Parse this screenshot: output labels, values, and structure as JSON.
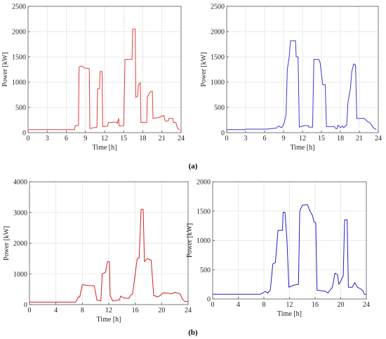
{
  "panel_labels": {
    "a": "(a)",
    "b": "(b)"
  },
  "chart_data": [
    {
      "type": "line",
      "panel": "a-left",
      "xlabel": "Time [h]",
      "ylabel": "Power [kW]",
      "xlim": [
        0,
        24
      ],
      "ylim": [
        0,
        2500
      ],
      "xticks": [
        0,
        3,
        6,
        9,
        12,
        15,
        18,
        21,
        24
      ],
      "yticks": [
        0,
        500,
        1000,
        1500,
        2000,
        2500
      ],
      "grid": true,
      "color": "#e0403a",
      "series": [
        {
          "points": [
            [
              0,
              60
            ],
            [
              7.3,
              60
            ],
            [
              7.4,
              140
            ],
            [
              7.9,
              140
            ],
            [
              8.0,
              1300
            ],
            [
              8.3,
              1320
            ],
            [
              8.6,
              1310
            ],
            [
              8.8,
              1280
            ],
            [
              9.6,
              1270
            ],
            [
              9.7,
              80
            ],
            [
              10.3,
              100
            ],
            [
              10.8,
              100
            ],
            [
              10.9,
              870
            ],
            [
              11.2,
              870
            ],
            [
              11.3,
              1210
            ],
            [
              11.6,
              1210
            ],
            [
              11.7,
              120
            ],
            [
              12.5,
              130
            ],
            [
              12.6,
              200
            ],
            [
              13.9,
              210
            ],
            [
              14.0,
              180
            ],
            [
              14.2,
              280
            ],
            [
              14.3,
              130
            ],
            [
              15.0,
              140
            ],
            [
              15.2,
              1450
            ],
            [
              16.3,
              1450
            ],
            [
              16.4,
              2050
            ],
            [
              16.8,
              2050
            ],
            [
              16.9,
              700
            ],
            [
              17.2,
              720
            ],
            [
              17.3,
              940
            ],
            [
              17.6,
              990
            ],
            [
              17.7,
              200
            ],
            [
              18.6,
              200
            ],
            [
              18.7,
              700
            ],
            [
              19.1,
              800
            ],
            [
              19.5,
              820
            ],
            [
              19.6,
              280
            ],
            [
              20.5,
              300
            ],
            [
              21.3,
              340
            ],
            [
              21.5,
              230
            ],
            [
              22.0,
              230
            ],
            [
              22.1,
              280
            ],
            [
              22.7,
              280
            ],
            [
              22.8,
              200
            ],
            [
              23.2,
              200
            ],
            [
              23.4,
              100
            ],
            [
              23.8,
              50
            ]
          ]
        }
      ]
    },
    {
      "type": "line",
      "panel": "a-right",
      "xlabel": "Time [h]",
      "ylabel": "Power [kW]",
      "xlim": [
        0,
        24
      ],
      "ylim": [
        0,
        2500
      ],
      "xticks": [
        0,
        3,
        6,
        9,
        12,
        15,
        18,
        21,
        24
      ],
      "yticks": [
        0,
        500,
        1000,
        1500,
        2000,
        2500
      ],
      "grid": true,
      "color": "#3a3ad8",
      "series": [
        {
          "points": [
            [
              0,
              60
            ],
            [
              2.9,
              60
            ],
            [
              3.0,
              70
            ],
            [
              6.5,
              70
            ],
            [
              7.0,
              80
            ],
            [
              7.9,
              90
            ],
            [
              8.0,
              110
            ],
            [
              8.3,
              130
            ],
            [
              8.6,
              100
            ],
            [
              8.8,
              110
            ],
            [
              9.1,
              190
            ],
            [
              9.4,
              360
            ],
            [
              9.6,
              1250
            ],
            [
              9.9,
              1500
            ],
            [
              10.1,
              1820
            ],
            [
              10.9,
              1820
            ],
            [
              11.0,
              1500
            ],
            [
              11.3,
              1500
            ],
            [
              11.5,
              110
            ],
            [
              12.3,
              140
            ],
            [
              12.9,
              140
            ],
            [
              13.0,
              110
            ],
            [
              13.6,
              110
            ],
            [
              13.8,
              1450
            ],
            [
              14.6,
              1450
            ],
            [
              14.8,
              1380
            ],
            [
              15.2,
              950
            ],
            [
              15.6,
              950
            ],
            [
              15.8,
              120
            ],
            [
              17.0,
              120
            ],
            [
              17.3,
              80
            ],
            [
              17.5,
              80
            ],
            [
              17.6,
              150
            ],
            [
              18.0,
              100
            ],
            [
              18.3,
              130
            ],
            [
              18.5,
              100
            ],
            [
              19.0,
              150
            ],
            [
              19.2,
              600
            ],
            [
              19.6,
              880
            ],
            [
              19.8,
              1200
            ],
            [
              20.1,
              1360
            ],
            [
              20.4,
              1340
            ],
            [
              20.6,
              280
            ],
            [
              21.8,
              280
            ],
            [
              22.2,
              230
            ],
            [
              22.8,
              180
            ],
            [
              23.2,
              100
            ],
            [
              23.7,
              60
            ]
          ]
        }
      ]
    },
    {
      "type": "line",
      "panel": "b-left",
      "xlabel": "Time [h]",
      "ylabel": "Power [kW]",
      "xlim": [
        0,
        24
      ],
      "ylim": [
        0,
        4000
      ],
      "xticks": [
        0,
        4,
        8,
        12,
        16,
        20,
        24
      ],
      "yticks": [
        0,
        1000,
        2000,
        3000,
        4000
      ],
      "grid": true,
      "color": "#d42020",
      "series": [
        {
          "points": [
            [
              0,
              80
            ],
            [
              7.0,
              80
            ],
            [
              7.4,
              250
            ],
            [
              7.6,
              250
            ],
            [
              8.0,
              650
            ],
            [
              9.0,
              620
            ],
            [
              9.8,
              610
            ],
            [
              10.2,
              150
            ],
            [
              10.8,
              120
            ],
            [
              11.0,
              1000
            ],
            [
              11.5,
              1050
            ],
            [
              11.8,
              1400
            ],
            [
              12.1,
              1400
            ],
            [
              12.2,
              300
            ],
            [
              12.6,
              120
            ],
            [
              13.6,
              150
            ],
            [
              13.8,
              280
            ],
            [
              14.2,
              220
            ],
            [
              15.0,
              200
            ],
            [
              15.3,
              300
            ],
            [
              15.6,
              350
            ],
            [
              16.0,
              1000
            ],
            [
              16.3,
              1500
            ],
            [
              16.6,
              1520
            ],
            [
              16.9,
              3100
            ],
            [
              17.2,
              3100
            ],
            [
              17.4,
              1400
            ],
            [
              17.8,
              1500
            ],
            [
              18.4,
              1450
            ],
            [
              18.8,
              300
            ],
            [
              19.4,
              250
            ],
            [
              19.8,
              300
            ],
            [
              20.2,
              380
            ],
            [
              21.0,
              370
            ],
            [
              21.5,
              350
            ],
            [
              22.0,
              400
            ],
            [
              22.8,
              350
            ],
            [
              23.1,
              200
            ],
            [
              23.5,
              100
            ],
            [
              24,
              100
            ]
          ]
        }
      ]
    },
    {
      "type": "line",
      "panel": "b-right",
      "xlabel": "Time [h]",
      "ylabel": "Power [kW]",
      "xlim": [
        0,
        24
      ],
      "ylim": [
        0,
        2000
      ],
      "xticks": [
        0,
        4,
        8,
        12,
        16,
        20,
        24
      ],
      "yticks": [
        0,
        500,
        1000,
        1500,
        2000
      ],
      "grid": true,
      "color": "#2020c8",
      "series": [
        {
          "points": [
            [
              0,
              80
            ],
            [
              7.4,
              80
            ],
            [
              7.8,
              100
            ],
            [
              8.2,
              130
            ],
            [
              8.6,
              100
            ],
            [
              9.0,
              150
            ],
            [
              9.4,
              600
            ],
            [
              9.8,
              620
            ],
            [
              10.2,
              1170
            ],
            [
              10.9,
              1170
            ],
            [
              11.0,
              1480
            ],
            [
              11.3,
              1480
            ],
            [
              11.6,
              1000
            ],
            [
              11.9,
              200
            ],
            [
              12.3,
              220
            ],
            [
              12.8,
              240
            ],
            [
              13.4,
              250
            ],
            [
              13.6,
              1500
            ],
            [
              14.0,
              1600
            ],
            [
              14.8,
              1610
            ],
            [
              15.2,
              1500
            ],
            [
              15.6,
              1420
            ],
            [
              15.8,
              1320
            ],
            [
              16.1,
              1300
            ],
            [
              16.3,
              150
            ],
            [
              17.0,
              140
            ],
            [
              17.6,
              130
            ],
            [
              18.0,
              100
            ],
            [
              18.2,
              130
            ],
            [
              18.7,
              200
            ],
            [
              19.1,
              440
            ],
            [
              19.5,
              420
            ],
            [
              19.7,
              250
            ],
            [
              20.0,
              300
            ],
            [
              20.4,
              400
            ],
            [
              20.6,
              1350
            ],
            [
              21.0,
              1350
            ],
            [
              21.2,
              200
            ],
            [
              21.8,
              200
            ],
            [
              22.2,
              280
            ],
            [
              22.6,
              200
            ],
            [
              23.0,
              180
            ],
            [
              23.4,
              150
            ],
            [
              23.7,
              80
            ],
            [
              24,
              80
            ]
          ]
        }
      ]
    }
  ]
}
